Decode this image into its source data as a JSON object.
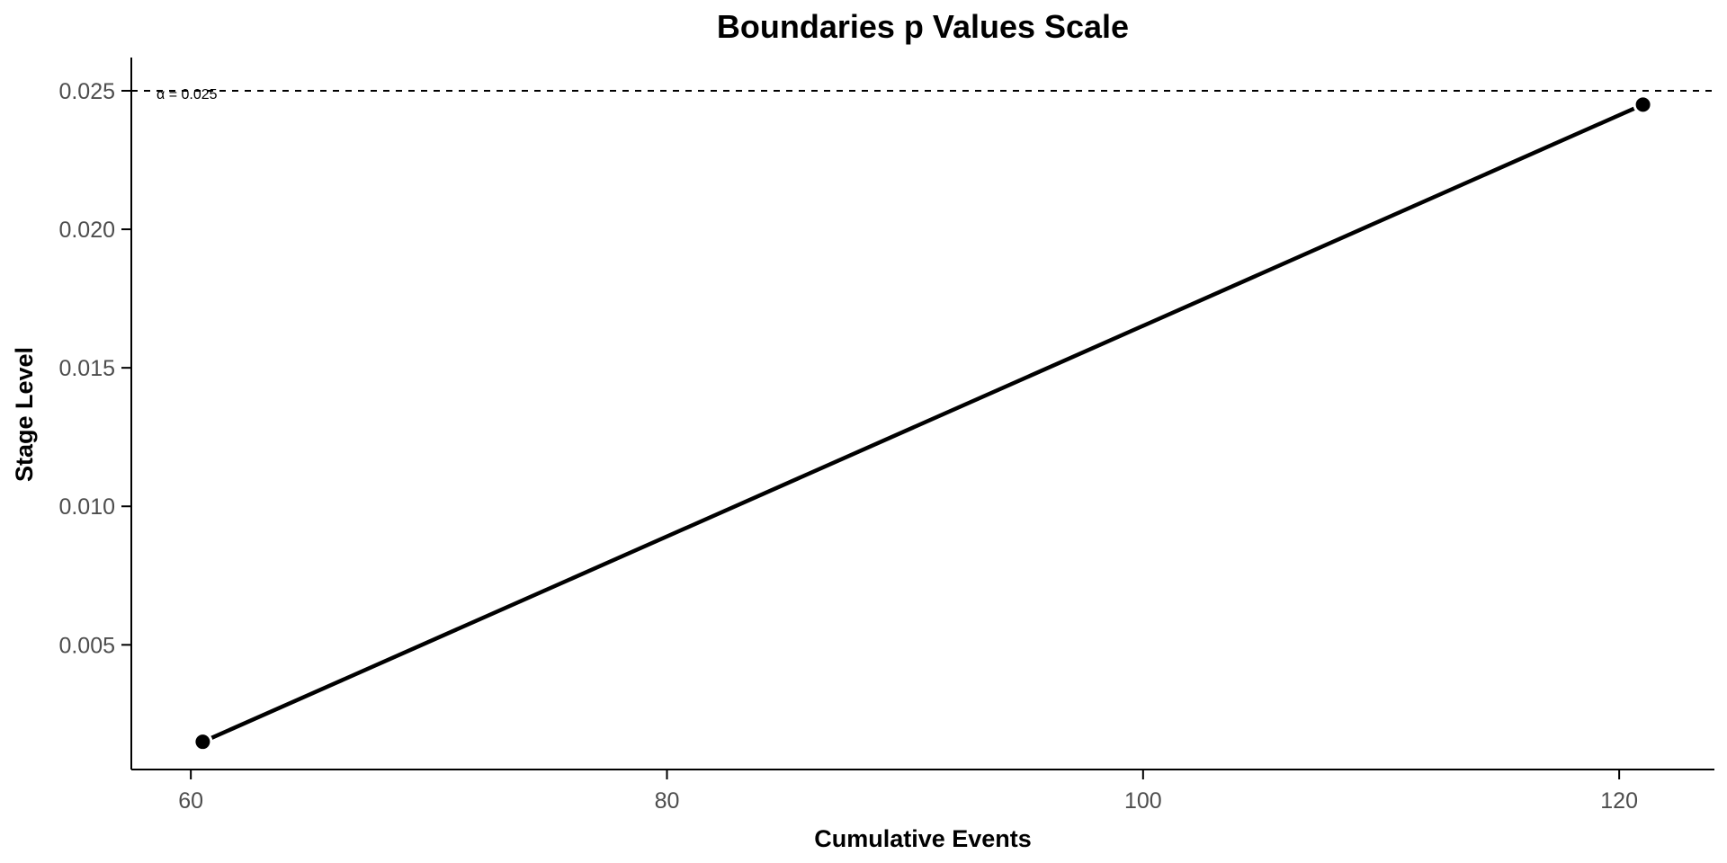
{
  "chart_data": {
    "type": "line",
    "title": "Boundaries p Values Scale",
    "xlabel": "Cumulative Events",
    "ylabel": "Stage Level",
    "xlim": [
      57.5,
      124
    ],
    "ylim": [
      0.0005,
      0.0262
    ],
    "xticks": [
      60,
      80,
      100,
      120
    ],
    "xtick_labels": [
      "60",
      "80",
      "100",
      "120"
    ],
    "yticks": [
      0.005,
      0.01,
      0.015,
      0.02,
      0.025
    ],
    "ytick_labels": [
      "0.005",
      "0.010",
      "0.015",
      "0.020",
      "0.025"
    ],
    "series": [
      {
        "x": [
          60.5,
          121
        ],
        "y": [
          0.0015,
          0.0245
        ]
      }
    ],
    "reference_line": {
      "y": 0.025,
      "label": "α = 0.025",
      "style": "dashed"
    },
    "grid": false,
    "legend": "none"
  }
}
